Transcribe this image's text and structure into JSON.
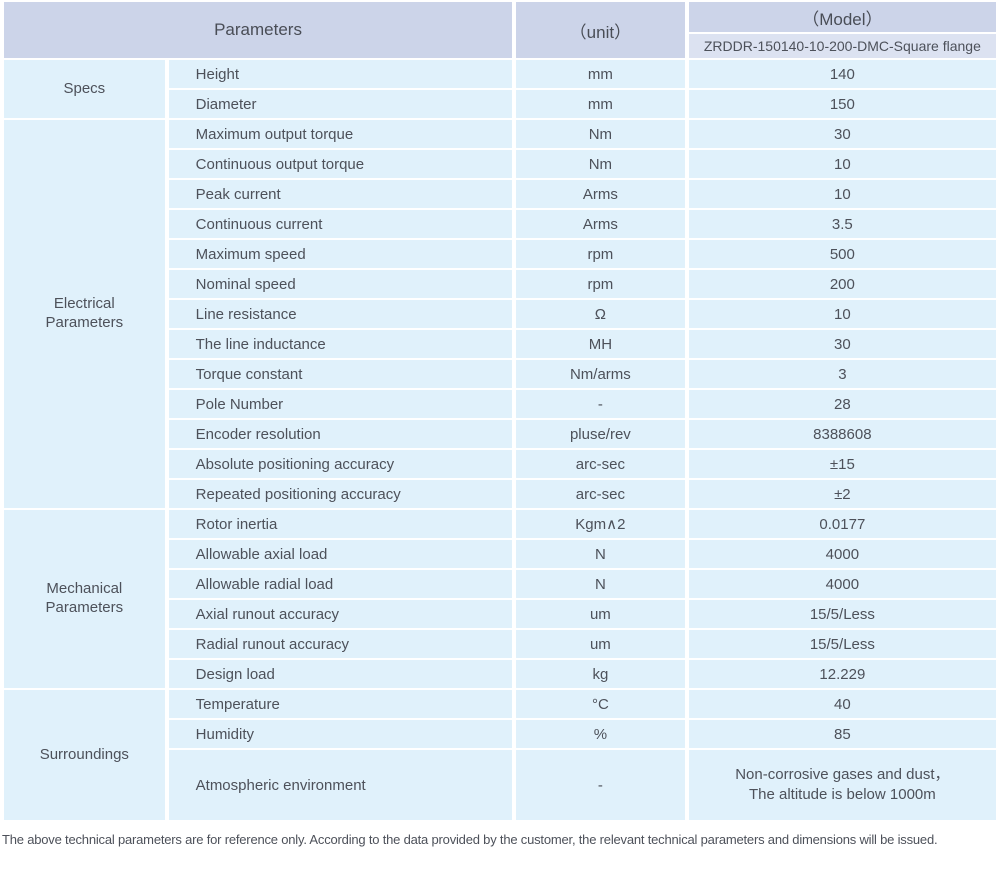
{
  "header": {
    "parameters_label": "Parameters",
    "unit_label": "（unit）",
    "model_label": "（Model）",
    "model_value": "ZRDDR-150140-10-200-DMC-Square flange"
  },
  "sections": [
    {
      "group": "Specs",
      "rows": [
        {
          "param": "Height",
          "unit": "mm",
          "value": "140"
        },
        {
          "param": "Diameter",
          "unit": "mm",
          "value": "150"
        }
      ]
    },
    {
      "group": "Electrical Parameters",
      "rows": [
        {
          "param": "Maximum output torque",
          "unit": "Nm",
          "value": "30"
        },
        {
          "param": "Continuous output torque",
          "unit": "Nm",
          "value": "10"
        },
        {
          "param": "Peak current",
          "unit": "Arms",
          "value": "10"
        },
        {
          "param": "Continuous current",
          "unit": "Arms",
          "value": "3.5"
        },
        {
          "param": "Maximum speed",
          "unit": "rpm",
          "value": "500"
        },
        {
          "param": "Nominal speed",
          "unit": "rpm",
          "value": "200"
        },
        {
          "param": "Line resistance",
          "unit": "Ω",
          "value": "10"
        },
        {
          "param": "The line inductance",
          "unit": "MH",
          "value": "30"
        },
        {
          "param": "Torque constant",
          "unit": "Nm/arms",
          "value": "3"
        },
        {
          "param": "Pole Number",
          "unit": "-",
          "value": "28"
        },
        {
          "param": "Encoder resolution",
          "unit": "pluse/rev",
          "value": "8388608"
        },
        {
          "param": "Absolute positioning accuracy",
          "unit": "arc-sec",
          "value": "±15"
        },
        {
          "param": "Repeated positioning accuracy",
          "unit": "arc-sec",
          "value": "±2"
        }
      ]
    },
    {
      "group": "Mechanical Parameters",
      "rows": [
        {
          "param": "Rotor inertia",
          "unit": "Kgm∧2",
          "value": "0.0177"
        },
        {
          "param": "Allowable axial load",
          "unit": "N",
          "value": "4000"
        },
        {
          "param": "Allowable radial load",
          "unit": "N",
          "value": "4000"
        },
        {
          "param": "Axial runout accuracy",
          "unit": "um",
          "value": "15/5/Less"
        },
        {
          "param": "Radial runout accuracy",
          "unit": "um",
          "value": "15/5/Less"
        },
        {
          "param": "Design load",
          "unit": "kg",
          "value": "12.229"
        }
      ]
    },
    {
      "group": "Surroundings",
      "rows": [
        {
          "param": "Temperature",
          "unit": "°C",
          "value": "40"
        },
        {
          "param": "Humidity",
          "unit": "%",
          "value": "85"
        },
        {
          "param": "Atmospheric environment",
          "unit": "-",
          "value": [
            "Non-corrosive gases and dust，",
            "The altitude is below 1000m"
          ],
          "tall": true
        }
      ]
    }
  ],
  "footer_note": "The above technical parameters are for reference only. According to the data provided by the customer, the relevant technical parameters and dimensions will be issued.",
  "colors": {
    "header_bg": "#ccd4e9",
    "model_row_bg": "#dce2f1",
    "cell_bg": "#e0f1fb",
    "separator": "#ffffff",
    "text": "#4d515a"
  }
}
